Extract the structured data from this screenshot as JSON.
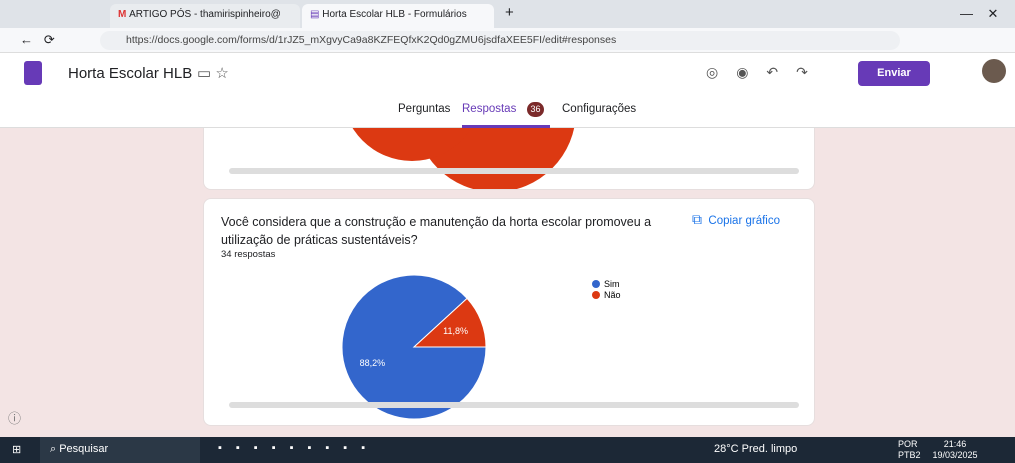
{
  "browser": {
    "tabs": [
      "ARTIGO PÓS - thamirispinheiro@",
      "Horta Escolar HLB - Formulários"
    ],
    "url": "https://docs.google.com/forms/d/1rJZ5_mXgvyCa9a8KZFEQfxK2Qd0gZMU6jsdfaXEE5FI/edit#responses"
  },
  "header": {
    "title": "Horta Escolar HLB",
    "send": "Enviar",
    "tabs": [
      "Perguntas",
      "Respostas",
      "Configurações"
    ],
    "badge": "36"
  },
  "question": {
    "text": "Você considera que a construção e manutenção da horta escolar promoveu a utilização de práticas sustentáveis?",
    "copy": "Copiar gráfico",
    "count": "34 respostas"
  },
  "chart_data": {
    "type": "pie",
    "categories": [
      "Sim",
      "Não"
    ],
    "values": [
      88.2,
      11.8
    ],
    "value_labels": [
      "88,2%",
      "11,8%"
    ],
    "colors": [
      "#3366cc",
      "#dc3912"
    ]
  },
  "taskbar": {
    "search": "Pesquisar",
    "weather": "28°C Pred. limpo",
    "lang": "POR",
    "layout": "PTB2",
    "time": "21:46",
    "date": "19/03/2025"
  }
}
